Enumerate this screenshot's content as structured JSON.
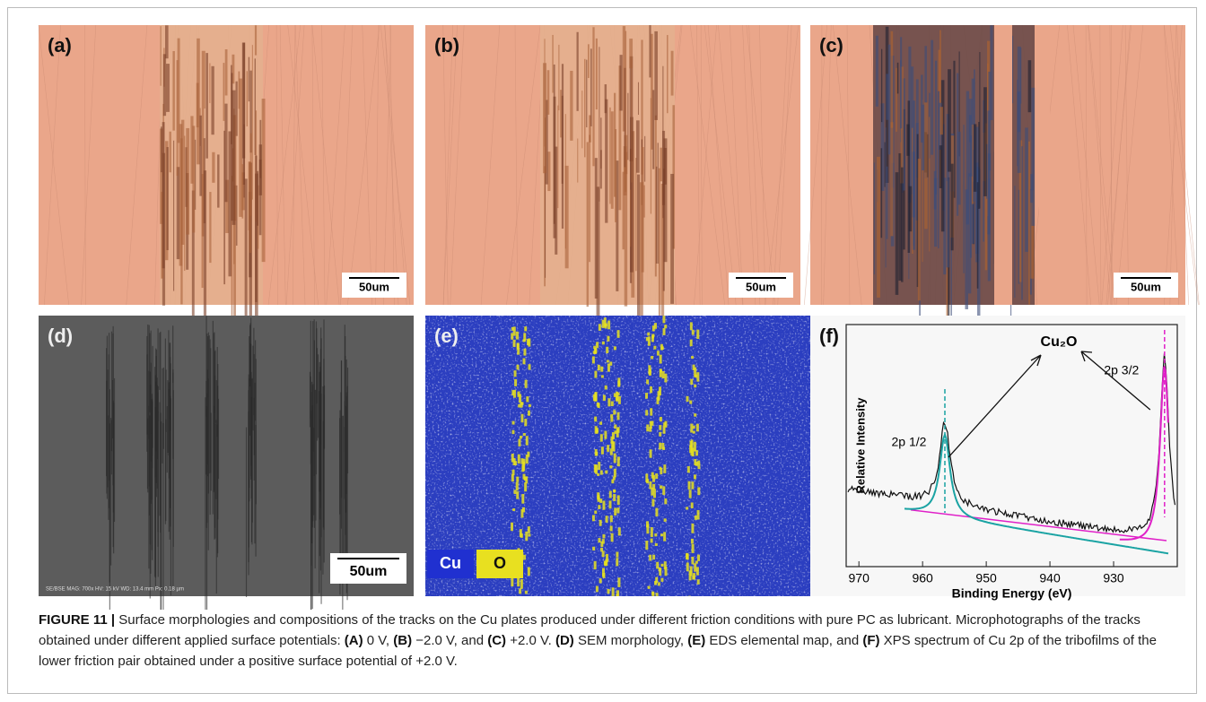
{
  "panels": [
    {
      "label": "(a)",
      "scale_bar": "50um"
    },
    {
      "label": "(b)",
      "scale_bar": "50um"
    },
    {
      "label": "(c)",
      "scale_bar": "50um"
    },
    {
      "label": "(d)",
      "scale_bar": "50um",
      "footer": "SE/BSE   MAG: 700x   HV: 15 kV   WD: 13.4 mm   Px: 0.18 µm"
    },
    {
      "label": "(e)",
      "legend": [
        "Cu",
        "O"
      ]
    },
    {
      "label": "(f)",
      "chart": {
        "type": "line",
        "y_label": "Relative Intensity",
        "x_label": "Binding Energy (eV)",
        "xlim": [
          972,
          920
        ],
        "xticks": [
          970,
          960,
          950,
          940,
          930
        ],
        "annotation": "Cu₂O",
        "peaks": [
          {
            "label": "2p 1/2",
            "x": 956.5,
            "color": "#1aa3a3"
          },
          {
            "label": "2p 3/2",
            "x": 922,
            "color": "#e020c8"
          }
        ]
      }
    }
  ],
  "caption": [
    {
      "text": "FIGURE 11 |",
      "bold": true
    },
    {
      "text": " Surface morphologies and compositions of the tracks on the Cu plates produced under different friction conditions with pure PC as lubricant. Microphotographs of the tracks obtained under different applied surface potentials: ",
      "bold": false
    },
    {
      "text": "(A)",
      "bold": true
    },
    {
      "text": " 0 V, ",
      "bold": false
    },
    {
      "text": "(B)",
      "bold": true
    },
    {
      "text": " −2.0 V, and ",
      "bold": false
    },
    {
      "text": "(C)",
      "bold": true
    },
    {
      "text": " +2.0 V. ",
      "bold": false
    },
    {
      "text": "(D)",
      "bold": true
    },
    {
      "text": " SEM morphology, ",
      "bold": false
    },
    {
      "text": "(E)",
      "bold": true
    },
    {
      "text": " EDS elemental map, and ",
      "bold": false
    },
    {
      "text": "(F)",
      "bold": true
    },
    {
      "text": " XPS spectrum of Cu 2p of the tribofilms of the lower friction pair obtained under a positive surface potential of +2.0 V.",
      "bold": false
    }
  ]
}
